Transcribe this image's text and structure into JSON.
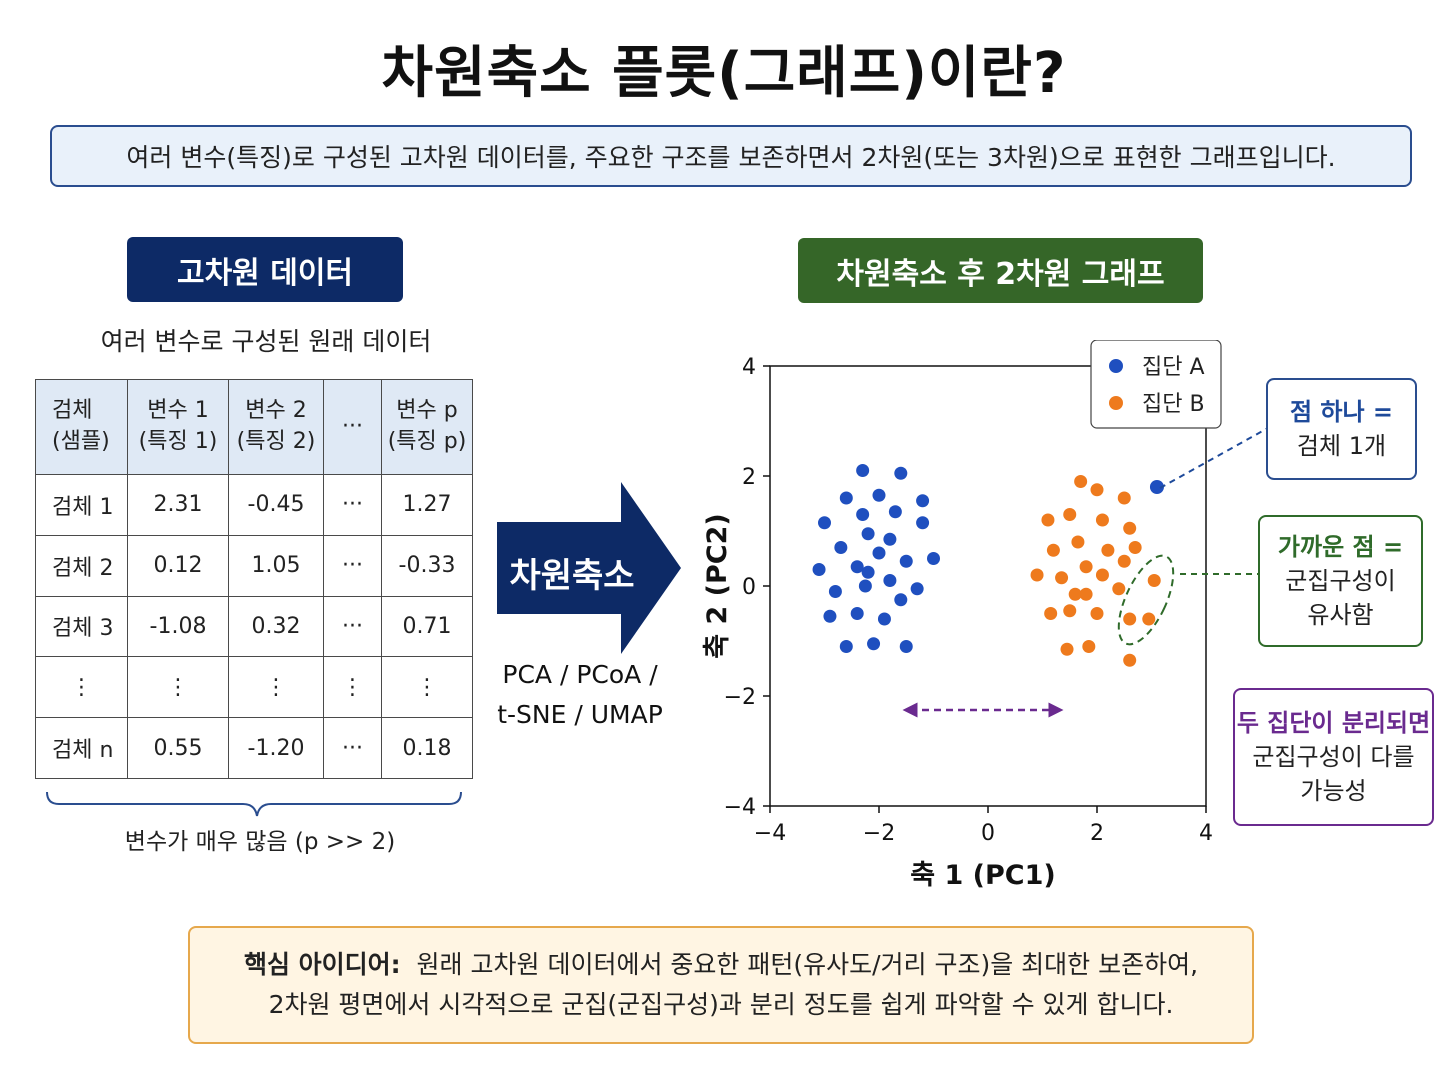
{
  "title": "차원축소 플롯(그래프)이란?",
  "subtitle": "여러 변수(특징)로 구성된 고차원 데이터를, 주요한 구조를 보존하면서 2차원(또는 3차원)으로 표현한 그래프입니다.",
  "left_panel": {
    "pill": "고차원 데이터",
    "caption": "여러 변수로 구성된 원래 데이터",
    "table": {
      "header": [
        {
          "line1": "검체",
          "line2": "(샘플)"
        },
        {
          "line1": "변수 1",
          "line2": "(특징 1)"
        },
        {
          "line1": "변수 2",
          "line2": "(특징 2)"
        },
        {
          "line1": "···",
          "line2": ""
        },
        {
          "line1": "변수 p",
          "line2": "(특징 p)"
        }
      ],
      "rows": [
        [
          "검체 1",
          "2.31",
          "-0.45",
          "···",
          "1.27"
        ],
        [
          "검체 2",
          "0.12",
          "1.05",
          "···",
          "-0.33"
        ],
        [
          "검체 3",
          "-1.08",
          "0.32",
          "···",
          "0.71"
        ],
        [
          "⋮",
          "⋮",
          "⋮",
          "⋮",
          "⋮"
        ],
        [
          "검체 n",
          "0.55",
          "-1.20",
          "···",
          "0.18"
        ]
      ]
    },
    "brace_caption": "변수가 매우 많음 (p >> 2)"
  },
  "arrow": {
    "label": "차원축소",
    "methods_line1": "PCA / PCoA /",
    "methods_line2": "t-SNE / UMAP"
  },
  "right_panel": {
    "pill": "차원축소 후 2차원 그래프"
  },
  "colors": {
    "navy": "#0d2a66",
    "green": "#356628",
    "group_a": "#1f4fbf",
    "group_b": "#ee7a1d",
    "purple": "#6a2a8f"
  },
  "chart_data": {
    "type": "scatter",
    "xlabel": "축 1 (PC1)",
    "ylabel": "축 2 (PC2)",
    "xlim": [
      -4,
      4
    ],
    "ylim": [
      -4,
      4
    ],
    "xticks": [
      "−4",
      "−2",
      "0",
      "2",
      "4"
    ],
    "yticks": [
      "4",
      "2",
      "0",
      "−2",
      "−4"
    ],
    "grid": false,
    "legend": "top-right",
    "series": [
      {
        "name": "집단 A",
        "color": "#1f4fbf",
        "points": [
          [
            -2.3,
            2.1
          ],
          [
            -1.6,
            2.05
          ],
          [
            -2.6,
            1.6
          ],
          [
            -2.0,
            1.65
          ],
          [
            -1.2,
            1.55
          ],
          [
            -3.0,
            1.15
          ],
          [
            -2.3,
            1.3
          ],
          [
            -1.7,
            1.35
          ],
          [
            -1.2,
            1.15
          ],
          [
            -2.2,
            0.95
          ],
          [
            -1.8,
            0.85
          ],
          [
            -2.7,
            0.7
          ],
          [
            -2.0,
            0.6
          ],
          [
            -2.4,
            0.35
          ],
          [
            -1.5,
            0.45
          ],
          [
            -1.0,
            0.5
          ],
          [
            -3.1,
            0.3
          ],
          [
            -2.2,
            0.25
          ],
          [
            -1.8,
            0.1
          ],
          [
            -2.8,
            -0.1
          ],
          [
            -2.25,
            0.0
          ],
          [
            -1.3,
            -0.05
          ],
          [
            -1.6,
            -0.25
          ],
          [
            -2.4,
            -0.5
          ],
          [
            -1.9,
            -0.6
          ],
          [
            -2.9,
            -0.55
          ],
          [
            -2.6,
            -1.1
          ],
          [
            -2.1,
            -1.05
          ],
          [
            -1.5,
            -1.1
          ]
        ]
      },
      {
        "name": "집단 B",
        "color": "#ee7a1d",
        "points": [
          [
            1.7,
            1.9
          ],
          [
            2.0,
            1.75
          ],
          [
            2.5,
            1.6
          ],
          [
            1.1,
            1.2
          ],
          [
            1.5,
            1.3
          ],
          [
            2.1,
            1.2
          ],
          [
            2.6,
            1.05
          ],
          [
            1.2,
            0.65
          ],
          [
            1.65,
            0.8
          ],
          [
            2.2,
            0.65
          ],
          [
            2.7,
            0.7
          ],
          [
            1.8,
            0.35
          ],
          [
            0.9,
            0.2
          ],
          [
            1.35,
            0.15
          ],
          [
            2.1,
            0.2
          ],
          [
            2.5,
            0.45
          ],
          [
            1.6,
            -0.15
          ],
          [
            1.8,
            -0.15
          ],
          [
            2.4,
            -0.05
          ],
          [
            3.05,
            0.1
          ],
          [
            1.15,
            -0.5
          ],
          [
            1.5,
            -0.45
          ],
          [
            2.0,
            -0.5
          ],
          [
            2.6,
            -0.6
          ],
          [
            2.95,
            -0.6
          ],
          [
            1.45,
            -1.15
          ],
          [
            1.85,
            -1.1
          ],
          [
            2.6,
            -1.35
          ]
        ]
      },
      {
        "name": "",
        "color": "#1f4fbf",
        "points": [
          [
            3.1,
            1.8
          ]
        ]
      }
    ]
  },
  "plot_legend": [
    {
      "label": "집단 A",
      "color": "#1f4fbf"
    },
    {
      "label": "집단 B",
      "color": "#ee7a1d"
    }
  ],
  "callouts": [
    {
      "head": "점 하나 =",
      "body1": "검체 1개",
      "body2": ""
    },
    {
      "head": "가까운 점 =",
      "body1": "군집구성이",
      "body2": "유사함"
    },
    {
      "head": "두 집단이 분리되면",
      "body1": "군집구성이 다를",
      "body2": "가능성"
    }
  ],
  "bottom": {
    "label": "핵심 아이디어:",
    "line1": "원래 고차원 데이터에서 중요한 패턴(유사도/거리 구조)을 최대한 보존하여,",
    "line2": "2차원 평면에서 시각적으로 군집(군집구성)과 분리 정도를 쉽게 파악할 수 있게 합니다."
  }
}
